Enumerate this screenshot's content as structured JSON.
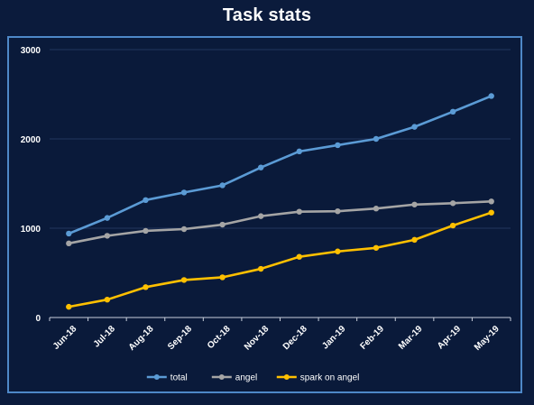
{
  "chart_data": {
    "type": "line",
    "title": "Task stats",
    "xlabel": "",
    "ylabel": "",
    "ylim": [
      0,
      3000
    ],
    "yticks": [
      "0",
      "1000",
      "2000",
      "3000"
    ],
    "grid": true,
    "legend_position": "bottom",
    "categories": [
      "Jun-18",
      "Jul-18",
      "Aug-18",
      "Sep-18",
      "Oct-18",
      "Nov-18",
      "Dec-18",
      "Jan-19",
      "Feb-19",
      "Mar-19",
      "Apr-19",
      "May-19"
    ],
    "series": [
      {
        "name": "total",
        "color": "#5b9bd5",
        "values": [
          940,
          1115,
          1315,
          1400,
          1480,
          1680,
          1860,
          1930,
          2000,
          2135,
          2305,
          2480
        ]
      },
      {
        "name": "angel",
        "color": "#a5a5a5",
        "values": [
          830,
          915,
          970,
          990,
          1040,
          1135,
          1185,
          1190,
          1220,
          1265,
          1280,
          1300
        ]
      },
      {
        "name": "spark on angel",
        "color": "#ffc000",
        "values": [
          120,
          200,
          340,
          420,
          450,
          545,
          680,
          740,
          780,
          870,
          1030,
          1175
        ]
      }
    ]
  }
}
